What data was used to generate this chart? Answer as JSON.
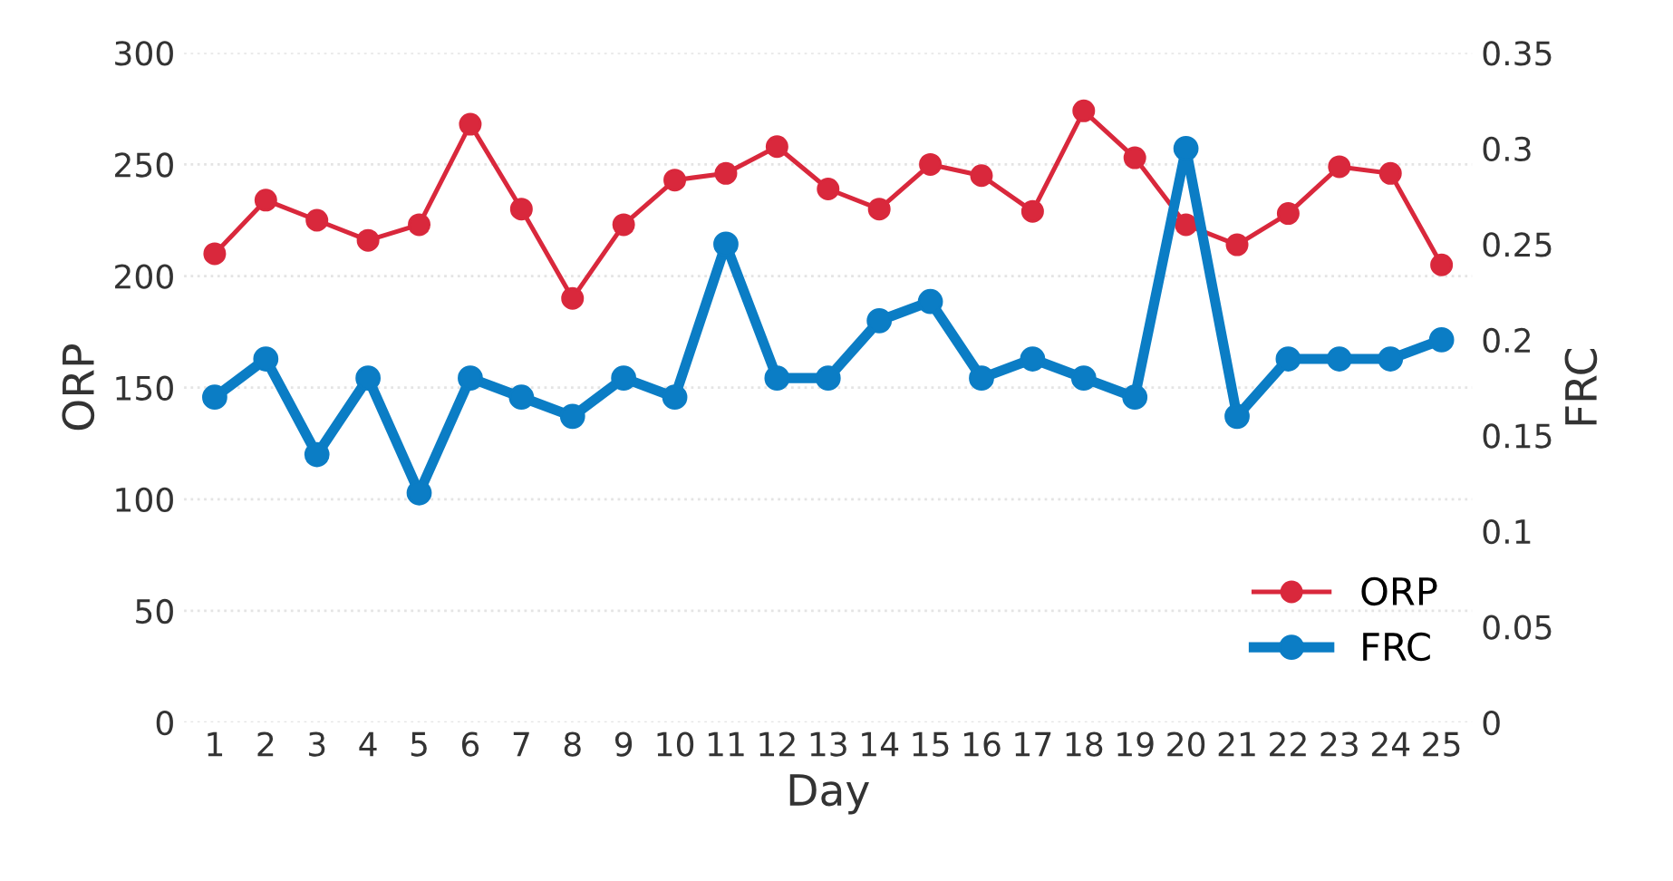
{
  "chart_data": {
    "type": "line",
    "xlabel": "Day",
    "ylabel": "ORP",
    "y2label": "FRC",
    "categories": [
      "1",
      "2",
      "3",
      "4",
      "5",
      "6",
      "7",
      "8",
      "9",
      "10",
      "11",
      "12",
      "13",
      "14",
      "15",
      "16",
      "17",
      "18",
      "19",
      "20",
      "21",
      "22",
      "23",
      "24",
      "25"
    ],
    "series": [
      {
        "name": "ORP",
        "color": "#d9283c",
        "values": [
          210,
          234,
          225,
          216,
          223,
          268,
          230,
          190,
          223,
          243,
          246,
          258,
          239,
          230,
          250,
          245,
          229,
          274,
          253,
          223,
          214,
          228,
          249,
          246,
          205
        ]
      },
      {
        "name": "FRC",
        "color": "#0b7dc5",
        "axis": "y2",
        "values": [
          0.17,
          0.19,
          0.14,
          0.18,
          0.12,
          0.18,
          0.17,
          0.16,
          0.18,
          0.17,
          0.25,
          0.18,
          0.18,
          0.21,
          0.22,
          0.18,
          0.19,
          0.18,
          0.17,
          0.3,
          0.16,
          0.19,
          0.19,
          0.19,
          0.2
        ]
      }
    ],
    "ylim": [
      0,
      300
    ],
    "yticks": [
      0,
      50,
      100,
      150,
      200,
      250,
      300
    ],
    "y2lim": [
      0,
      0.35
    ],
    "y2ticks": [
      0,
      0.05,
      0.1,
      0.15,
      0.2,
      0.25,
      0.3,
      0.35
    ],
    "grid": "y",
    "legend": "bottom right",
    "marker": "circle",
    "line_style": "solid"
  }
}
